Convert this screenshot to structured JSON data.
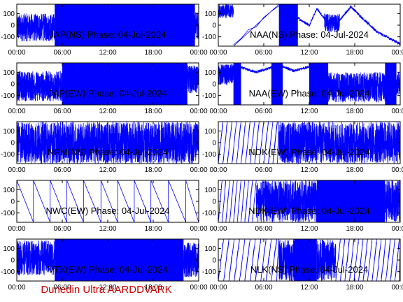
{
  "footer": {
    "text": "Dunedin Ultra AARDDVARK",
    "color": "#cc0000"
  },
  "colors": {
    "trace": "#0000ff",
    "axes": "#000000",
    "background": "#ffffff"
  },
  "chart_data": [
    {
      "type": "line",
      "title": "JAP(NS) Phase: 04-Jul-2024",
      "xlim": [
        0,
        24
      ],
      "ylim": [
        -180,
        180
      ],
      "x_tick_labels": [
        "00:00",
        "06:00",
        "12:00",
        "18:00",
        "00:00"
      ],
      "y_tick_labels": [
        "100",
        "0",
        "-100"
      ],
      "x_ticks": [
        0,
        6,
        12,
        18,
        24
      ],
      "y_ticks": [
        100,
        0,
        -100
      ],
      "segments": [
        {
          "from": 0,
          "to": 5,
          "style": "noise",
          "center": -20,
          "spread": 120
        },
        {
          "from": 5,
          "to": 23.5,
          "style": "fill"
        },
        {
          "from": 23.5,
          "to": 24,
          "style": "noise",
          "center": 0,
          "spread": 120
        }
      ]
    },
    {
      "type": "line",
      "title": "NAA(NS) Phase: 04-Jul-2024",
      "xlim": [
        0,
        24
      ],
      "ylim": [
        -180,
        180
      ],
      "x_tick_labels": [
        "00:00",
        "06:00",
        "12:00",
        "18:00",
        "00:00"
      ],
      "y_tick_labels": [
        "100",
        "0",
        "-100"
      ],
      "x_ticks": [
        0,
        6,
        12,
        18,
        24
      ],
      "y_ticks": [
        100,
        0,
        -100
      ],
      "segments": [
        {
          "from": 0,
          "to": 2,
          "style": "noise",
          "center": 120,
          "spread": 60
        },
        {
          "from": 2,
          "to": 8,
          "style": "wrap",
          "period": 8
        },
        {
          "from": 8,
          "to": 10.5,
          "style": "fill"
        },
        {
          "from": 10.5,
          "to": 14,
          "style": "curve",
          "points": [
            [
              10.5,
              60
            ],
            [
              12,
              0
            ],
            [
              13,
              140
            ],
            [
              14,
              60
            ]
          ]
        },
        {
          "from": 14,
          "to": 16,
          "style": "noise",
          "center": 20,
          "spread": 80
        },
        {
          "from": 16,
          "to": 24,
          "style": "curve",
          "points": [
            [
              16,
              40
            ],
            [
              17.5,
              160
            ],
            [
              19,
              60
            ],
            [
              21,
              -60
            ],
            [
              24,
              -160
            ]
          ]
        }
      ]
    },
    {
      "type": "line",
      "title": "JAP(EW) Phase: 04-Jul-2024",
      "xlim": [
        0,
        24
      ],
      "ylim": [
        -180,
        180
      ],
      "x_tick_labels": [
        "00:00",
        "06:00",
        "12:00",
        "18:00",
        "00:00"
      ],
      "y_tick_labels": [
        "100",
        "0",
        "-100"
      ],
      "x_ticks": [
        0,
        6,
        12,
        18,
        24
      ],
      "y_ticks": [
        100,
        0,
        -100
      ],
      "segments": [
        {
          "from": 0,
          "to": 6,
          "style": "noise",
          "center": -20,
          "spread": 130
        },
        {
          "from": 6,
          "to": 22.5,
          "style": "fill"
        },
        {
          "from": 22.5,
          "to": 24,
          "style": "noise",
          "center": 40,
          "spread": 120
        }
      ]
    },
    {
      "type": "line",
      "title": "NAA(EW) Phase: 04-Jul-2024",
      "xlim": [
        0,
        24
      ],
      "ylim": [
        -180,
        180
      ],
      "x_tick_labels": [
        "00:00",
        "06:00",
        "12:00",
        "18:00",
        "00:00"
      ],
      "y_tick_labels": [
        "100",
        "0",
        "-100"
      ],
      "x_ticks": [
        0,
        6,
        12,
        18,
        24
      ],
      "y_ticks": [
        100,
        0,
        -100
      ],
      "segments": [
        {
          "from": 0,
          "to": 2,
          "style": "noise",
          "center": 80,
          "spread": 90
        },
        {
          "from": 2,
          "to": 3,
          "style": "fill"
        },
        {
          "from": 3,
          "to": 7,
          "style": "curve",
          "points": [
            [
              3,
              140
            ],
            [
              5,
              100
            ],
            [
              7,
              140
            ]
          ]
        },
        {
          "from": 7,
          "to": 8.5,
          "style": "fill"
        },
        {
          "from": 8.5,
          "to": 12,
          "style": "curve",
          "points": [
            [
              8.5,
              150
            ],
            [
              10,
              110
            ],
            [
              12,
              150
            ]
          ]
        },
        {
          "from": 12,
          "to": 14.5,
          "style": "fill"
        },
        {
          "from": 14.5,
          "to": 22,
          "style": "noise",
          "center": -30,
          "spread": 130
        },
        {
          "from": 22,
          "to": 23.5,
          "style": "fill"
        },
        {
          "from": 23.5,
          "to": 24,
          "style": "noise",
          "center": 0,
          "spread": 100
        }
      ]
    },
    {
      "type": "line",
      "title": "NPM(NS) Phase: 04-Jul-2024",
      "xlim": [
        0,
        24
      ],
      "ylim": [
        -180,
        180
      ],
      "x_tick_labels": [
        "00:00",
        "06:00",
        "12:00",
        "18:00",
        "00:00"
      ],
      "y_tick_labels": [
        "100",
        "0",
        "-100"
      ],
      "x_ticks": [
        0,
        6,
        12,
        18,
        24
      ],
      "y_ticks": [
        100,
        0,
        -100
      ],
      "segments": [
        {
          "from": 0,
          "to": 24,
          "style": "noise",
          "center": 0,
          "spread": 180
        }
      ]
    },
    {
      "type": "line",
      "title": "NDK(EW) Phase: 04-Jul-2024",
      "xlim": [
        0,
        24
      ],
      "ylim": [
        -180,
        180
      ],
      "x_tick_labels": [
        "00:00",
        "06:00",
        "12:00",
        "18:00",
        "00:00"
      ],
      "y_tick_labels": [
        "100",
        "0",
        "-100"
      ],
      "x_ticks": [
        0,
        6,
        12,
        18,
        24
      ],
      "y_ticks": [
        100,
        0,
        -100
      ],
      "segments": [
        {
          "from": 0,
          "to": 8,
          "style": "wrap",
          "period": 0.6
        },
        {
          "from": 8,
          "to": 12,
          "style": "noise",
          "center": 0,
          "spread": 180
        },
        {
          "from": 12,
          "to": 24,
          "style": "noise",
          "center": 0,
          "spread": 180
        }
      ]
    },
    {
      "type": "line",
      "title": "NWC(EW) Phase: 04-Jul-2024",
      "xlim": [
        0,
        24
      ],
      "ylim": [
        -180,
        180
      ],
      "x_tick_labels": [
        "00:00",
        "06:00",
        "12:00",
        "18:00",
        "00:00"
      ],
      "y_tick_labels": [
        "100",
        "0",
        "-100"
      ],
      "x_ticks": [
        0,
        6,
        12,
        18,
        24
      ],
      "y_ticks": [
        100,
        0,
        -100
      ],
      "segments": [
        {
          "from": 0,
          "to": 24,
          "style": "sawtooth",
          "wraps": [
            0,
            2.2,
            4.4,
            6.6,
            8.8,
            11.1,
            13.3,
            15.5,
            17.7,
            20,
            22.3,
            24
          ]
        }
      ]
    },
    {
      "type": "line",
      "title": "NDK(EW) Phase: 04-Jul-2024",
      "xlim": [
        0,
        24
      ],
      "ylim": [
        -180,
        180
      ],
      "x_tick_labels": [
        "00:00",
        "06:00",
        "12:00",
        "18:00",
        "00:00"
      ],
      "y_tick_labels": [
        "100",
        "0",
        "-100"
      ],
      "x_ticks": [
        0,
        6,
        12,
        18,
        24
      ],
      "y_ticks": [
        100,
        0,
        -100
      ],
      "segments": [
        {
          "from": 0,
          "to": 5,
          "style": "wrap",
          "period": 0.5
        },
        {
          "from": 5,
          "to": 13,
          "style": "noise",
          "center": 0,
          "spread": 180
        },
        {
          "from": 13,
          "to": 22,
          "style": "fill"
        },
        {
          "from": 22,
          "to": 24,
          "style": "noise",
          "center": 0,
          "spread": 180
        }
      ]
    },
    {
      "type": "line",
      "title": "VTX(EW) Phase: 04-Jul-2024",
      "xlim": [
        0,
        24
      ],
      "ylim": [
        -180,
        180
      ],
      "x_tick_labels": [
        "00:00",
        "06:00",
        "12:00",
        "18:00",
        "00:00"
      ],
      "y_tick_labels": [
        "100",
        "0",
        "-100"
      ],
      "x_ticks": [
        0,
        6,
        12,
        18,
        24
      ],
      "y_ticks": [
        100,
        0,
        -100
      ],
      "segments": [
        {
          "from": 0,
          "to": 5,
          "style": "noise",
          "center": 20,
          "spread": 150
        },
        {
          "from": 5,
          "to": 22,
          "style": "fill"
        },
        {
          "from": 22,
          "to": 24,
          "style": "noise",
          "center": 0,
          "spread": 150
        }
      ]
    },
    {
      "type": "line",
      "title": "NLK(NS) Phase: 04-Jul-2024",
      "xlim": [
        0,
        24
      ],
      "ylim": [
        -180,
        180
      ],
      "x_tick_labels": [
        "00:00",
        "06:00",
        "12:00",
        "18:00",
        "00:00"
      ],
      "y_tick_labels": [
        "100",
        "0",
        "-100"
      ],
      "x_ticks": [
        0,
        6,
        12,
        18,
        24
      ],
      "y_ticks": [
        100,
        0,
        -100
      ],
      "segments": [
        {
          "from": 0,
          "to": 8,
          "style": "wrap",
          "period": 0.7
        },
        {
          "from": 8,
          "to": 10,
          "style": "noise",
          "center": 0,
          "spread": 180
        },
        {
          "from": 10,
          "to": 13,
          "style": "fill"
        },
        {
          "from": 13,
          "to": 15.5,
          "style": "noise",
          "center": 0,
          "spread": 180
        },
        {
          "from": 15.5,
          "to": 24,
          "style": "wrap",
          "period": 0.6
        }
      ]
    }
  ]
}
